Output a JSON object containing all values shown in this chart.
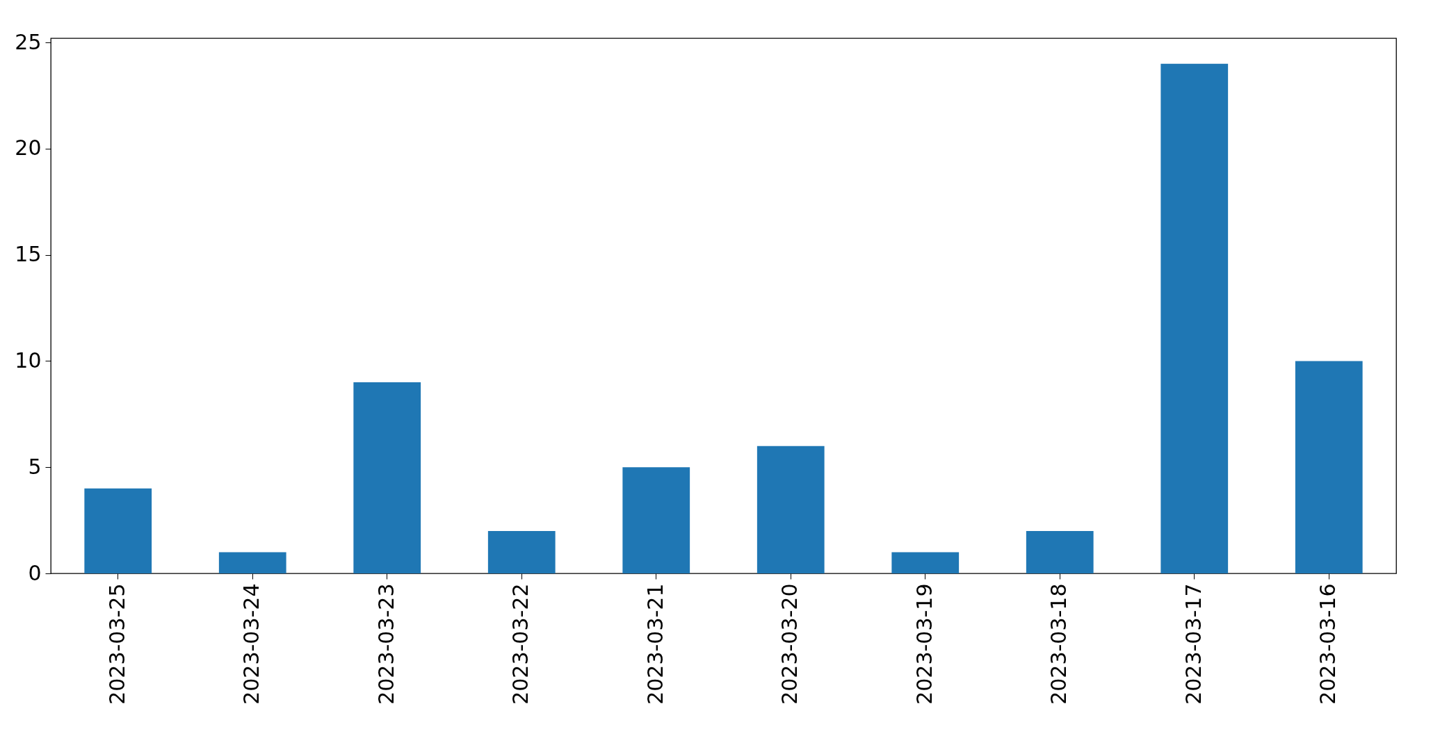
{
  "chart_data": {
    "type": "bar",
    "categories": [
      "2023-03-25",
      "2023-03-24",
      "2023-03-23",
      "2023-03-22",
      "2023-03-21",
      "2023-03-20",
      "2023-03-19",
      "2023-03-18",
      "2023-03-17",
      "2023-03-16"
    ],
    "values": [
      4,
      1,
      9,
      2,
      5,
      6,
      1,
      2,
      24,
      10
    ],
    "color": "#1f77b4",
    "ylim": [
      0,
      25.2
    ],
    "yticks": [
      0,
      5,
      10,
      15,
      20,
      25
    ],
    "grid": false
  }
}
